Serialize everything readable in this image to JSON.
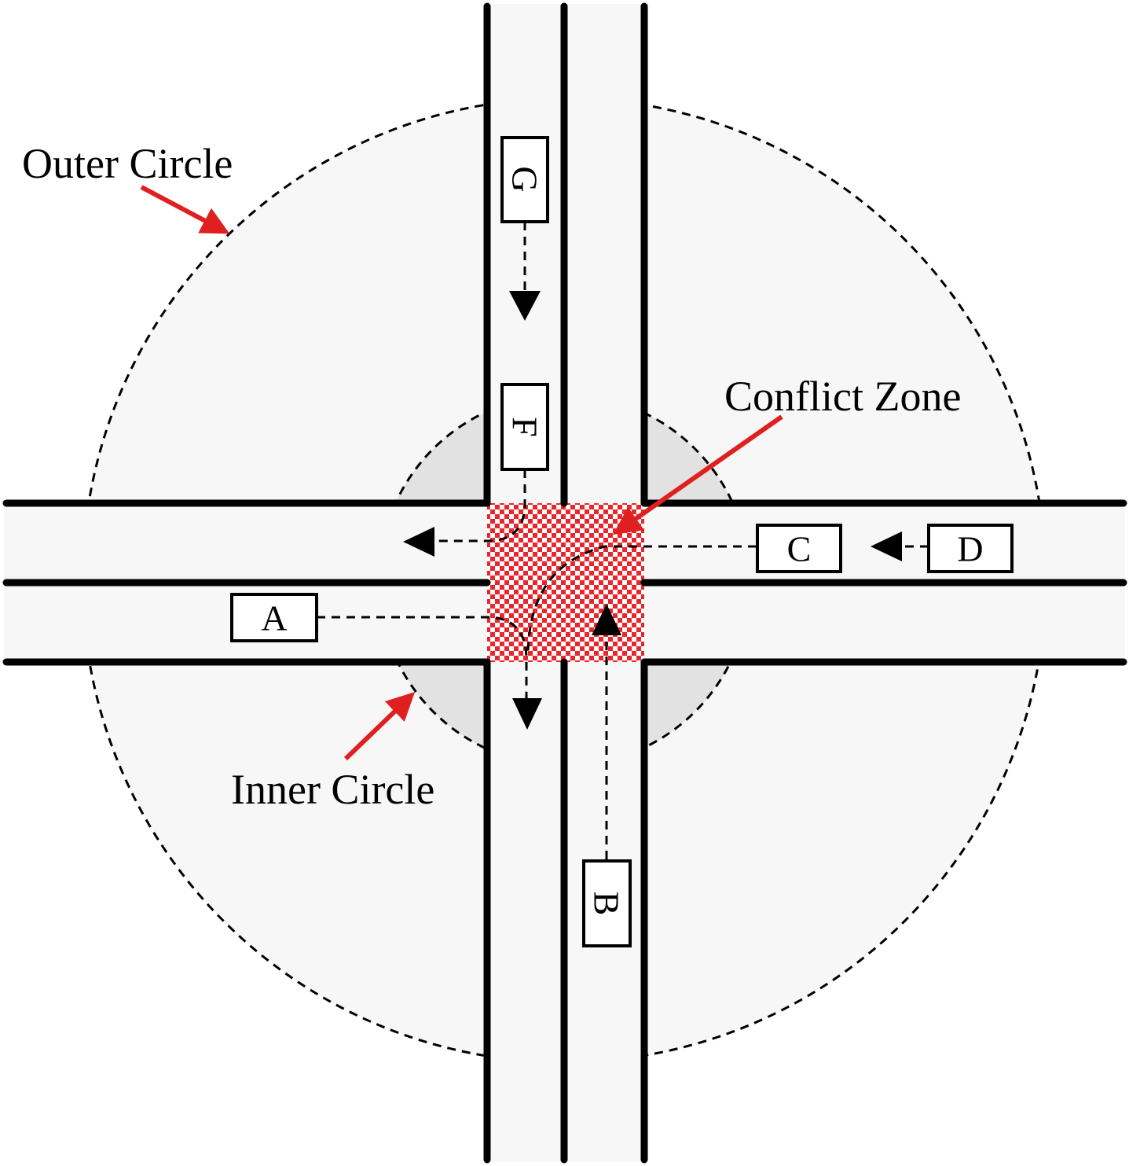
{
  "labels": {
    "outer_circle": "Outer Circle",
    "inner_circle": "Inner Circle",
    "conflict_zone": "Conflict Zone"
  },
  "vehicles": {
    "a": "A",
    "b": "B",
    "c": "C",
    "d": "D",
    "f": "F",
    "g": "G"
  },
  "colors": {
    "outer_fill": "#f7f7f7",
    "inner_fill": "#e2e2e2",
    "conflict_red": "#e8262b",
    "road_line": "#000000",
    "pointer_arrow": "#e02020"
  }
}
